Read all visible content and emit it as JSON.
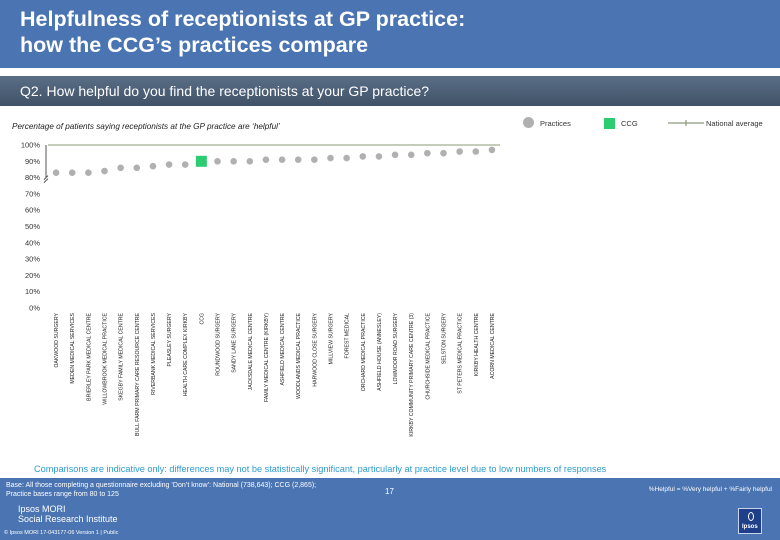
{
  "header": {
    "title": "Helpfulness of receptionists at GP practice:\nhow the CCG’s practices compare",
    "question": "Q2. How helpful do you find the receptionists at your GP practice?"
  },
  "subtitle": "Percentage of patients saying receptionists at the GP practice are ‘helpful’",
  "legend": {
    "practices": "Practices",
    "ccg": "CCG",
    "national": "National average"
  },
  "colors": {
    "practices": "#b0b0b0",
    "ccg": "#2ecc71",
    "national": "#8a9a7a",
    "header": "#4a74b2",
    "note": "#2e9cc9"
  },
  "chart_data": {
    "type": "scatter",
    "ylim": [
      0,
      100
    ],
    "yticks": [
      "0%",
      "10%",
      "20%",
      "30%",
      "40%",
      "50%",
      "60%",
      "70%",
      "80%",
      "90%",
      "100%"
    ],
    "categories": [
      "OAKWOOD SURGERY",
      "MEDEN MEDICAL SERVICES",
      "BRIERLEY PARK MEDICAL CENTRE",
      "WILLOWBROOK MEDICAL PRACTICE",
      "SKEGBY FAMILY MEDICAL CENTRE",
      "BULL FARM PRIMARY CARE RESOURCE CENTRE",
      "RIVERBANK MEDICAL SERVICES",
      "PLEASLEY SURGERY",
      "HEALTH CARE COMPLEX KIRKBY",
      "CCG",
      "ROUNDWOOD SURGERY",
      "SANDY LANE SURGERY",
      "JACKSDALE MEDICAL CENTRE",
      "FAMILY MEDICAL CENTRE (KIRKBY)",
      "ASHFIELD MEDICAL CENTRE",
      "WOODLANDS MEDICAL PRACTICE",
      "HARWOOD CLOSE SURGERY",
      "MILLVIEW SURGERY",
      "FOREST MEDICAL",
      "ORCHARD MEDICAL PRACTICE",
      "ASHFIELD HOUSE (ANNESLEY)",
      "LOWMOOR ROAD SURGERY",
      "KIRKBY COMMUNITY PRIMARY CARE CENTRE (3)",
      "CHURCHSIDE MEDICAL PRACTICE",
      "SELSTON SURGERY",
      "ST PETERS MEDICAL PRACTICE",
      "KIRKBY HEALTH CENTRE",
      "ACORN MEDICAL CENTRE"
    ],
    "values": [
      83,
      83,
      83,
      84,
      86,
      86,
      87,
      88,
      88,
      90,
      90,
      90,
      90,
      91,
      91,
      91,
      91,
      92,
      92,
      93,
      93,
      94,
      94,
      95,
      95,
      96,
      96,
      97
    ],
    "ccg_index": 9,
    "national_average": 100
  },
  "notes": {
    "comparison": "Comparisons are indicative only: differences may not be statistically significant, particularly at practice level due to low numbers of responses",
    "base": "Base: All those completing a questionnaire excluding ‘Don’t know’: National (738,643); CCG (2,865);\nPractice bases range from 80 to 125",
    "helpful_definition": "%Helpful = %Very helpful + %Fairly helpful",
    "page_number": "17",
    "logo": "Ipsos MORI\nSocial Research Institute",
    "copyright": "© Ipsos MORI     17-043177-06 Version 1 | Public",
    "badge": "Ipsos"
  }
}
